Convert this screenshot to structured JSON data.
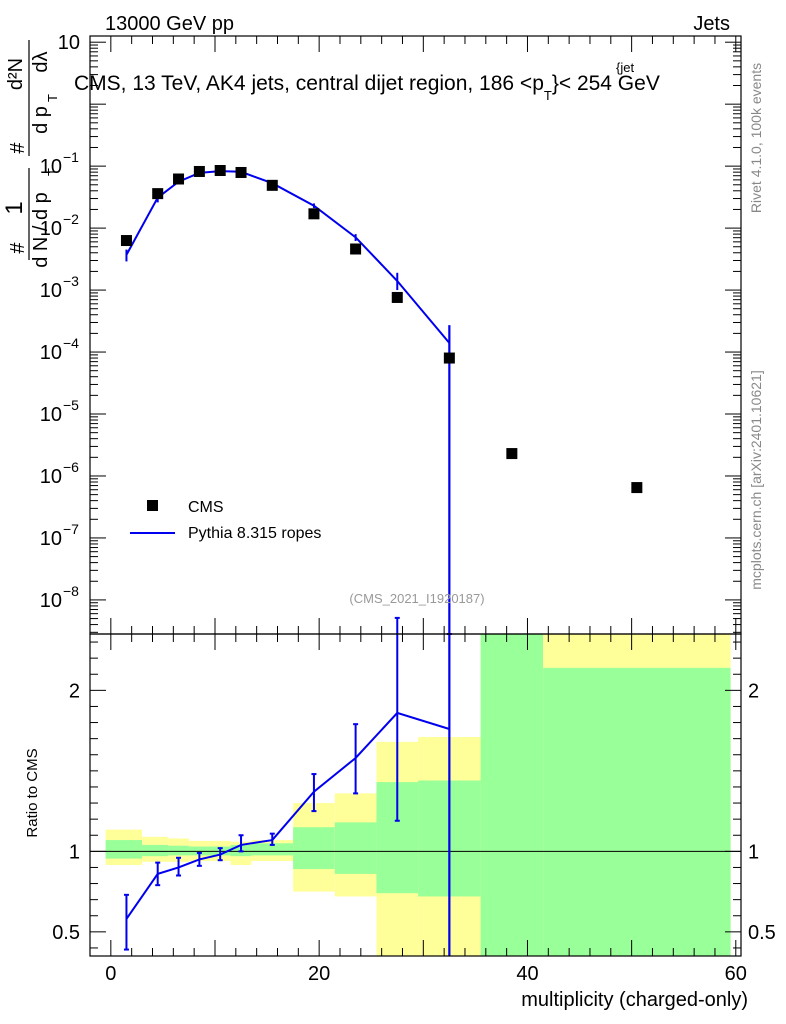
{
  "header": {
    "left": "13000 GeV pp",
    "right": "Jets",
    "title": "CMS, 13 TeV, AK4 jets, central dijet region, 186 <p",
    "title_sup": "{jet",
    "title_sub": "T",
    "title_end": "}< 254 GeV",
    "analysis_id": "(CMS_2021_I1920187)"
  },
  "side_labels": {
    "rivet": "Rivet 4.1.0,  100k events",
    "mcplots": "mcplots.cern.ch [arXiv:2401.10621]"
  },
  "colors": {
    "data": "#000000",
    "mc": "#0000ee",
    "band_yellow": "#ffff99",
    "band_green": "#99ff99"
  },
  "chart_data": [
    {
      "id": "main",
      "type": "scatter",
      "yscale": "log",
      "ylabel_parts": [
        "1",
        "#",
        "d N / d p",
        "T",
        "#",
        "d p",
        "T",
        "dλ",
        "d²N"
      ],
      "xlim": [
        -2,
        60.5
      ],
      "ylim_log10": [
        -8.55,
        1.1
      ],
      "ytick_labels": [
        {
          "exp": 1,
          "text": "10"
        },
        {
          "exp": -1,
          "text": "10",
          "sup": "−1"
        },
        {
          "exp": -2,
          "text": "10",
          "sup": "−2"
        },
        {
          "exp": -3,
          "text": "10",
          "sup": "−3"
        },
        {
          "exp": -4,
          "text": "10",
          "sup": "−4"
        },
        {
          "exp": -5,
          "text": "10",
          "sup": "−5"
        },
        {
          "exp": -6,
          "text": "10",
          "sup": "−6"
        },
        {
          "exp": -7,
          "text": "10",
          "sup": "−7"
        },
        {
          "exp": -8,
          "text": "10",
          "sup": "−8"
        }
      ],
      "legend": [
        {
          "name": "CMS",
          "marker": "square"
        },
        {
          "name": "Pythia 8.315 ropes",
          "marker": "line"
        }
      ],
      "series": [
        {
          "name": "CMS",
          "x": [
            1.5,
            4.5,
            6.5,
            8.5,
            10.5,
            12.5,
            15.5,
            19.5,
            23.5,
            27.5,
            32.5,
            38.5,
            50.5
          ],
          "y": [
            0.0063,
            0.036,
            0.062,
            0.082,
            0.085,
            0.079,
            0.049,
            0.017,
            0.0046,
            0.00076,
            8e-05,
            2.3e-06,
            6.5e-07
          ]
        },
        {
          "name": "Pythia 8.315 ropes",
          "x": [
            1.5,
            4.5,
            6.5,
            8.5,
            10.5,
            12.5,
            15.5,
            19.5,
            23.5,
            27.5,
            32.5
          ],
          "y": [
            0.0037,
            0.031,
            0.056,
            0.078,
            0.083,
            0.081,
            0.053,
            0.023,
            0.0071,
            0.0014,
            0.00014
          ],
          "err_lo": [
            0.0029,
            0.026,
            0.051,
            0.074,
            0.08,
            0.078,
            0.05,
            0.021,
            0.0062,
            0.001,
            1e-12
          ],
          "err_hi": [
            0.0045,
            0.036,
            0.061,
            0.082,
            0.086,
            0.084,
            0.056,
            0.025,
            0.008,
            0.0019,
            0.00027
          ]
        }
      ]
    },
    {
      "id": "ratio",
      "type": "line",
      "ylabel": "Ratio to CMS",
      "xlabel": "multiplicity (charged-only)",
      "xlim": [
        -2,
        60.5
      ],
      "ylim": [
        0.35,
        2.35
      ],
      "xticks": [
        0,
        20,
        40,
        60
      ],
      "ytick_labels": [
        2,
        1,
        0.5
      ],
      "bands": [
        {
          "x0": -0.5,
          "x1": 3.0,
          "yellow": [
            0.915,
            1.135
          ],
          "green": [
            0.955,
            1.07
          ]
        },
        {
          "x0": 3.0,
          "x1": 5.5,
          "yellow": [
            0.935,
            1.09
          ],
          "green": [
            0.97,
            1.04
          ]
        },
        {
          "x0": 5.5,
          "x1": 7.5,
          "yellow": [
            0.935,
            1.08
          ],
          "green": [
            0.975,
            1.035
          ]
        },
        {
          "x0": 7.5,
          "x1": 11.5,
          "yellow": [
            0.94,
            1.065
          ],
          "green": [
            0.975,
            1.03
          ]
        },
        {
          "x0": 11.5,
          "x1": 13.5,
          "yellow": [
            0.915,
            1.06
          ],
          "green": [
            0.97,
            1.04
          ]
        },
        {
          "x0": 13.5,
          "x1": 17.5,
          "yellow": [
            0.94,
            1.07
          ],
          "green": [
            0.975,
            1.05
          ]
        },
        {
          "x0": 17.5,
          "x1": 21.5,
          "yellow": [
            0.75,
            1.3
          ],
          "green": [
            0.89,
            1.15
          ]
        },
        {
          "x0": 21.5,
          "x1": 25.5,
          "yellow": [
            0.72,
            1.36
          ],
          "green": [
            0.86,
            1.18
          ]
        },
        {
          "x0": 25.5,
          "x1": 29.5,
          "yellow": [
            0.35,
            1.68
          ],
          "green": [
            0.74,
            1.43
          ]
        },
        {
          "x0": 29.5,
          "x1": 35.5,
          "yellow": [
            0.35,
            1.71
          ],
          "green": [
            0.72,
            1.44
          ]
        },
        {
          "x0": 35.5,
          "x1": 41.5,
          "yellow": [
            0.35,
            2.35
          ],
          "green": [
            0.35,
            2.35
          ]
        },
        {
          "x0": 41.5,
          "x1": 59.5,
          "yellow": [
            0.35,
            2.35
          ],
          "green": [
            0.35,
            2.14
          ]
        }
      ],
      "series": [
        {
          "name": "Pythia 8.315 ropes / CMS",
          "x": [
            1.5,
            4.5,
            6.5,
            8.5,
            10.5,
            12.5,
            15.5,
            19.5,
            23.5,
            27.5,
            32.5
          ],
          "y": [
            0.58,
            0.86,
            0.9,
            0.95,
            0.98,
            1.04,
            1.07,
            1.37,
            1.58,
            1.86,
            1.76
          ],
          "err_lo": [
            0.39,
            0.79,
            0.85,
            0.91,
            0.945,
            1.0,
            1.04,
            1.25,
            1.36,
            1.19,
            0.2
          ],
          "err_hi": [
            0.73,
            0.93,
            0.96,
            0.99,
            1.02,
            1.1,
            1.11,
            1.48,
            1.79,
            2.45,
            2.35
          ]
        }
      ]
    }
  ]
}
